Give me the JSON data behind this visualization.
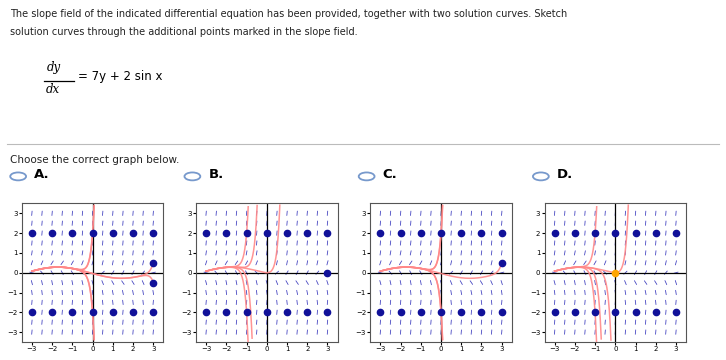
{
  "title_line1": "The slope field of the indicated differential equation has been provided, together with two solution curves. Sketch",
  "title_line2": "solution curves through the additional points marked in the slope field.",
  "choose_text": "Choose the correct graph below.",
  "panels": [
    "A.",
    "B.",
    "C.",
    "D."
  ],
  "slope_color": "#3333bb",
  "curve_color": "#ff8888",
  "dot_color": "#111199",
  "bg_color": "#ffffff",
  "panel_bg": "#ffffff",
  "radio_color": "#7799cc",
  "grid_color": "#dddddd"
}
